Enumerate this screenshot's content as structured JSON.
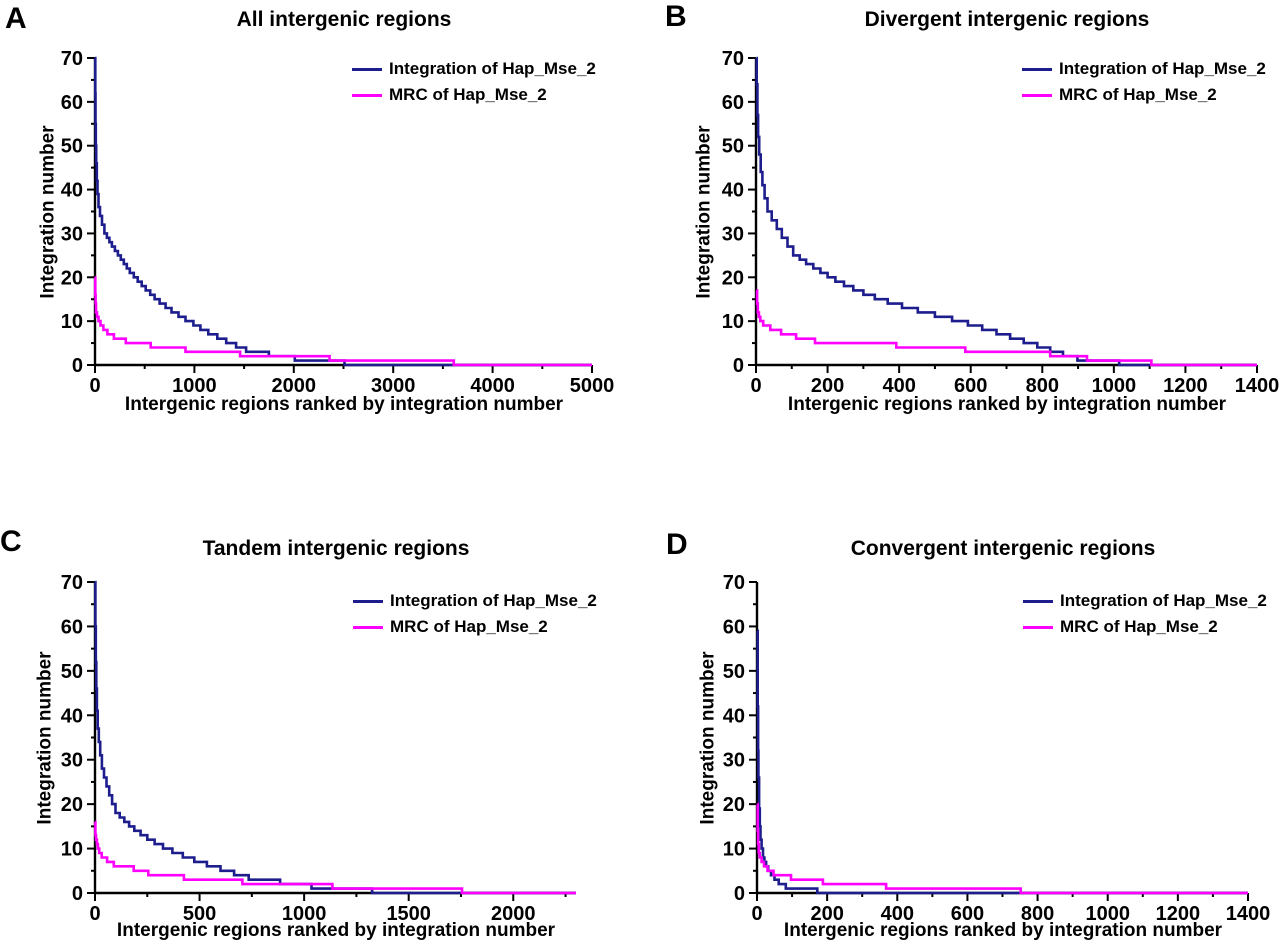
{
  "figure": {
    "background": "#ffffff",
    "series_colors": {
      "integration": "#1d1d8e",
      "mrc": "#ff00ff"
    },
    "axis_color": "#000000",
    "text_color": "#000000"
  },
  "chart_data": [
    {
      "panel_label": "A",
      "title": "All intergenic regions",
      "type": "line",
      "xlabel": "Intergenic regions ranked by integration number",
      "ylabel": "Integration number",
      "xlim": [
        0,
        5000
      ],
      "ylim": [
        0,
        70
      ],
      "x_ticks": [
        0,
        1000,
        2000,
        3000,
        4000,
        5000
      ],
      "x_minor_step": 500,
      "y_ticks": [
        0,
        10,
        20,
        30,
        40,
        50,
        60,
        70
      ],
      "y_minor_step": 5,
      "grid": false,
      "legend_position": "upper right",
      "series": [
        {
          "name": "Integration of Hap_Mse_2",
          "color": "#1d1d8e",
          "step_points": [
            [
              1,
              70
            ],
            [
              3,
              62
            ],
            [
              5,
              55
            ],
            [
              8,
              50
            ],
            [
              12,
              46
            ],
            [
              18,
              42
            ],
            [
              25,
              39
            ],
            [
              35,
              36
            ],
            [
              50,
              34
            ],
            [
              70,
              32
            ],
            [
              95,
              30
            ],
            [
              120,
              29
            ],
            [
              145,
              28
            ],
            [
              170,
              27
            ],
            [
              200,
              26
            ],
            [
              230,
              25
            ],
            [
              260,
              24
            ],
            [
              290,
              23
            ],
            [
              320,
              22
            ],
            [
              350,
              21
            ],
            [
              390,
              20
            ],
            [
              430,
              19
            ],
            [
              470,
              18
            ],
            [
              510,
              17
            ],
            [
              555,
              16
            ],
            [
              600,
              15
            ],
            [
              650,
              14
            ],
            [
              710,
              13
            ],
            [
              770,
              12
            ],
            [
              840,
              11
            ],
            [
              910,
              10
            ],
            [
              990,
              9
            ],
            [
              1060,
              8
            ],
            [
              1140,
              7
            ],
            [
              1230,
              6
            ],
            [
              1320,
              5
            ],
            [
              1420,
              4
            ],
            [
              1520,
              3
            ],
            [
              1750,
              2
            ],
            [
              2010,
              1
            ],
            [
              2510,
              0
            ],
            [
              5000,
              0
            ]
          ]
        },
        {
          "name": "MRC of Hap_Mse_2",
          "color": "#ff00ff",
          "step_points": [
            [
              1,
              20
            ],
            [
              3,
              16
            ],
            [
              6,
              14
            ],
            [
              10,
              12
            ],
            [
              20,
              11
            ],
            [
              35,
              10
            ],
            [
              55,
              9
            ],
            [
              85,
              8
            ],
            [
              125,
              7
            ],
            [
              190,
              6
            ],
            [
              310,
              5
            ],
            [
              560,
              4
            ],
            [
              910,
              3
            ],
            [
              1460,
              2
            ],
            [
              2360,
              1
            ],
            [
              3610,
              0
            ],
            [
              5000,
              0
            ]
          ]
        }
      ]
    },
    {
      "panel_label": "B",
      "title": "Divergent intergenic regions",
      "type": "line",
      "xlabel": "Intergenic regions ranked by integration number",
      "ylabel": "Integration number",
      "xlim": [
        0,
        1400
      ],
      "ylim": [
        0,
        70
      ],
      "x_ticks": [
        0,
        200,
        400,
        600,
        800,
        1000,
        1200,
        1400
      ],
      "x_minor_step": 100,
      "y_ticks": [
        0,
        10,
        20,
        30,
        40,
        50,
        60,
        70
      ],
      "y_minor_step": 5,
      "grid": false,
      "legend_position": "upper right",
      "series": [
        {
          "name": "Integration of Hap_Mse_2",
          "color": "#1d1d8e",
          "step_points": [
            [
              1,
              70
            ],
            [
              2,
              64
            ],
            [
              4,
              57
            ],
            [
              6,
              52
            ],
            [
              9,
              48
            ],
            [
              13,
              44
            ],
            [
              18,
              41
            ],
            [
              24,
              38
            ],
            [
              32,
              35
            ],
            [
              44,
              33
            ],
            [
              58,
              31
            ],
            [
              72,
              29
            ],
            [
              88,
              27
            ],
            [
              104,
              25
            ],
            [
              122,
              24
            ],
            [
              140,
              23
            ],
            [
              160,
              22
            ],
            [
              180,
              21
            ],
            [
              200,
              20
            ],
            [
              222,
              19
            ],
            [
              246,
              18
            ],
            [
              272,
              17
            ],
            [
              300,
              16
            ],
            [
              332,
              15
            ],
            [
              368,
              14
            ],
            [
              408,
              13
            ],
            [
              452,
              12
            ],
            [
              500,
              11
            ],
            [
              548,
              10
            ],
            [
              592,
              9
            ],
            [
              632,
              8
            ],
            [
              672,
              7
            ],
            [
              710,
              6
            ],
            [
              748,
              5
            ],
            [
              786,
              4
            ],
            [
              822,
              3
            ],
            [
              858,
              2
            ],
            [
              898,
              1
            ],
            [
              1015,
              0
            ],
            [
              1400,
              0
            ]
          ]
        },
        {
          "name": "MRC of Hap_Mse_2",
          "color": "#ff00ff",
          "step_points": [
            [
              1,
              17
            ],
            [
              3,
              14
            ],
            [
              5,
              12
            ],
            [
              8,
              11
            ],
            [
              12,
              10
            ],
            [
              20,
              9
            ],
            [
              40,
              8
            ],
            [
              70,
              7
            ],
            [
              112,
              6
            ],
            [
              165,
              5
            ],
            [
              392,
              4
            ],
            [
              585,
              3
            ],
            [
              822,
              2
            ],
            [
              925,
              1
            ],
            [
              1105,
              0
            ],
            [
              1400,
              0
            ]
          ]
        }
      ]
    },
    {
      "panel_label": "C",
      "title": "Tandem intergenic regions",
      "type": "line",
      "xlabel": "Intergenic regions ranked by integration number",
      "ylabel": "Integration number",
      "xlim": [
        0,
        2300
      ],
      "ylim": [
        0,
        70
      ],
      "x_ticks": [
        0,
        500,
        1000,
        1500,
        2000
      ],
      "x_minor_step": 250,
      "y_ticks": [
        0,
        10,
        20,
        30,
        40,
        50,
        60,
        70
      ],
      "y_minor_step": 5,
      "grid": false,
      "legend_position": "upper right",
      "series": [
        {
          "name": "Integration of Hap_Mse_2",
          "color": "#1d1d8e",
          "step_points": [
            [
              1,
              70
            ],
            [
              2,
              60
            ],
            [
              4,
              52
            ],
            [
              6,
              46
            ],
            [
              9,
              41
            ],
            [
              13,
              37
            ],
            [
              18,
              34
            ],
            [
              25,
              31
            ],
            [
              33,
              28
            ],
            [
              43,
              26
            ],
            [
              55,
              24
            ],
            [
              68,
              22
            ],
            [
              82,
              20
            ],
            [
              98,
              18
            ],
            [
              118,
              17
            ],
            [
              140,
              16
            ],
            [
              163,
              15
            ],
            [
              188,
              14
            ],
            [
              218,
              13
            ],
            [
              250,
              12
            ],
            [
              285,
              11
            ],
            [
              325,
              10
            ],
            [
              370,
              9
            ],
            [
              420,
              8
            ],
            [
              475,
              7
            ],
            [
              535,
              6
            ],
            [
              600,
              5
            ],
            [
              665,
              4
            ],
            [
              735,
              3
            ],
            [
              885,
              2
            ],
            [
              1035,
              1
            ],
            [
              1325,
              0
            ],
            [
              2300,
              0
            ]
          ]
        },
        {
          "name": "MRC of Hap_Mse_2",
          "color": "#ff00ff",
          "step_points": [
            [
              1,
              16
            ],
            [
              2,
              13
            ],
            [
              5,
              12
            ],
            [
              9,
              11
            ],
            [
              14,
              10
            ],
            [
              20,
              9
            ],
            [
              32,
              8
            ],
            [
              58,
              7
            ],
            [
              90,
              6
            ],
            [
              185,
              5
            ],
            [
              255,
              4
            ],
            [
              425,
              3
            ],
            [
              705,
              2
            ],
            [
              1135,
              1
            ],
            [
              1755,
              0
            ],
            [
              2300,
              0
            ]
          ]
        }
      ]
    },
    {
      "panel_label": "D",
      "title": "Convergent intergenic regions",
      "type": "line",
      "xlabel": "Intergenic regions ranked by integration number",
      "ylabel": "Integration number",
      "xlim": [
        0,
        1400
      ],
      "ylim": [
        0,
        70
      ],
      "x_ticks": [
        0,
        200,
        400,
        600,
        800,
        1000,
        1200,
        1400
      ],
      "x_minor_step": 100,
      "y_ticks": [
        0,
        10,
        20,
        30,
        40,
        50,
        60,
        70
      ],
      "y_minor_step": 5,
      "grid": false,
      "legend_position": "upper right",
      "series": [
        {
          "name": "Integration of Hap_Mse_2",
          "color": "#1d1d8e",
          "step_points": [
            [
              1,
              59
            ],
            [
              2,
              42
            ],
            [
              3,
              32
            ],
            [
              4,
              26
            ],
            [
              6,
              19
            ],
            [
              8,
              15
            ],
            [
              10,
              12
            ],
            [
              13,
              10
            ],
            [
              17,
              8
            ],
            [
              21,
              7
            ],
            [
              26,
              6
            ],
            [
              32,
              5
            ],
            [
              40,
              4
            ],
            [
              50,
              3
            ],
            [
              62,
              2
            ],
            [
              82,
              1
            ],
            [
              172,
              0
            ],
            [
              1400,
              0
            ]
          ]
        },
        {
          "name": "MRC of Hap_Mse_2",
          "color": "#ff00ff",
          "step_points": [
            [
              1,
              20
            ],
            [
              2,
              14
            ],
            [
              3,
              11
            ],
            [
              5,
              9
            ],
            [
              8,
              8
            ],
            [
              13,
              7
            ],
            [
              20,
              6
            ],
            [
              30,
              5
            ],
            [
              47,
              4
            ],
            [
              97,
              3
            ],
            [
              188,
              2
            ],
            [
              368,
              1
            ],
            [
              752,
              0
            ],
            [
              1400,
              0
            ]
          ]
        }
      ]
    }
  ]
}
